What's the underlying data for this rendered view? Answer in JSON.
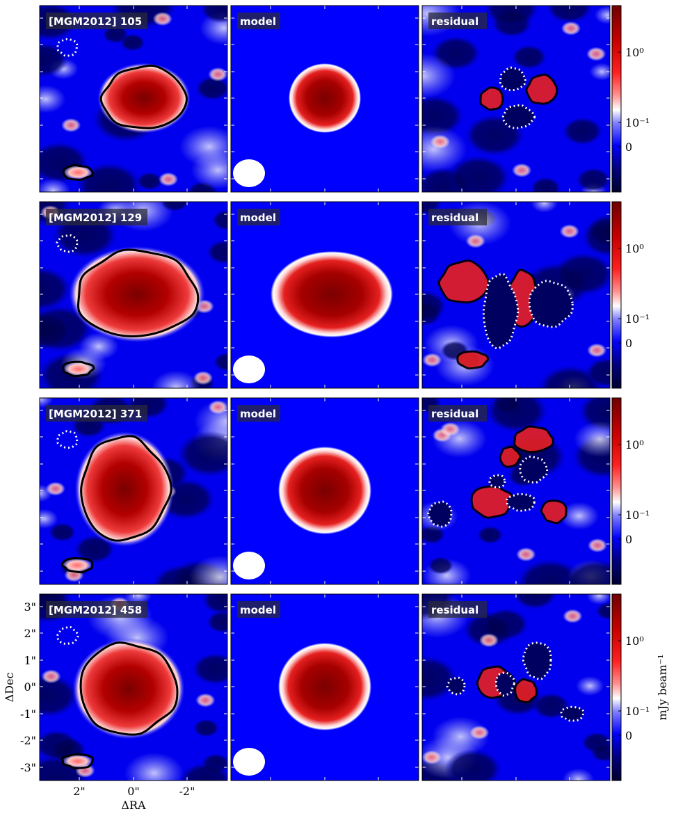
{
  "chart_data": {
    "type": "heatmap",
    "colormap": "seismic",
    "xlabel": "ΔRA",
    "ylabel": "ΔDec",
    "x_ticks": [
      "2\"",
      "0\"",
      "-2\""
    ],
    "y_ticks": [
      "3\"",
      "2\"",
      "1\"",
      "0\"",
      "-1\"",
      "-2\"",
      "-3\""
    ],
    "x_range": [
      3.5,
      -3.5
    ],
    "y_range": [
      -3.5,
      3.5
    ],
    "colorbar_label": "mJy beam⁻¹",
    "colorbar_ticks": [
      "10⁰",
      "10⁻¹",
      "0"
    ],
    "panel_titles": [
      "model",
      "residual"
    ],
    "rows": [
      {
        "source": "[MGM2012] 105"
      },
      {
        "source": "[MGM2012] 129"
      },
      {
        "source": "[MGM2012] 371"
      },
      {
        "source": "[MGM2012] 458"
      }
    ]
  }
}
